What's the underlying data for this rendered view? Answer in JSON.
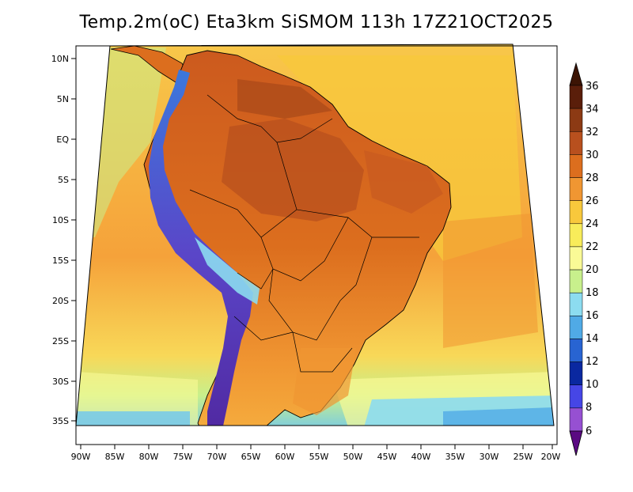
{
  "title": "Temp.2m(oC) Eta3km SiSMOM 113h 17Z21OCT2025",
  "map": {
    "lat_labels": [
      "10N",
      "5N",
      "EQ",
      "5S",
      "10S",
      "15S",
      "20S",
      "25S",
      "30S",
      "35S"
    ],
    "lon_labels": [
      "90W",
      "85W",
      "80W",
      "75W",
      "70W",
      "65W",
      "60W",
      "55W",
      "50W",
      "45W",
      "40W",
      "35W",
      "30W",
      "25W",
      "20W"
    ]
  },
  "colorbar": {
    "labels": [
      "36",
      "34",
      "32",
      "30",
      "28",
      "26",
      "24",
      "22",
      "20",
      "18",
      "16",
      "14",
      "12",
      "10",
      "8",
      "6"
    ],
    "colors": [
      "#5a1e0a",
      "#8c3a14",
      "#b8501e",
      "#dc6e1e",
      "#f09632",
      "#f8c83c",
      "#f8ec5a",
      "#fafa96",
      "#c8f08c",
      "#8cdcf0",
      "#50aae6",
      "#2864d2",
      "#0a28a0",
      "#4646e6",
      "#9650d2",
      "#6e1496"
    ],
    "top_arrow_color": "#3c1404",
    "bottom_arrow_color": "#5a0a82"
  }
}
